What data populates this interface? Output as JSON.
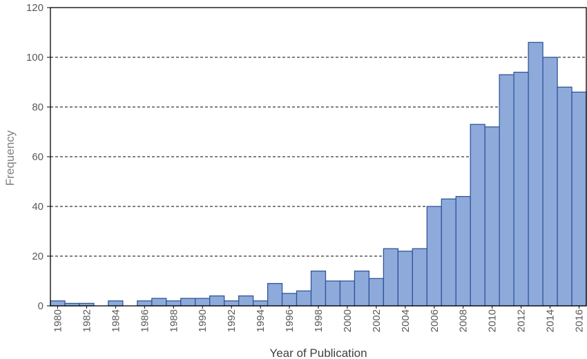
{
  "chart_data": {
    "type": "bar",
    "title": "",
    "xlabel": "Year of Publication",
    "ylabel": "Frequency",
    "ylim": [
      0,
      120
    ],
    "yticks": [
      0,
      20,
      40,
      60,
      80,
      100,
      120
    ],
    "grid": "horizontal dashed",
    "categories": [
      "1980",
      "1981",
      "1982",
      "1983",
      "1984",
      "1985",
      "1986",
      "1987",
      "1988",
      "1989",
      "1990",
      "1991",
      "1992",
      "1993",
      "1994",
      "1995",
      "1996",
      "1997",
      "1998",
      "1999",
      "2000",
      "2001",
      "2002",
      "2003",
      "2004",
      "2005",
      "2006",
      "2007",
      "2008",
      "2009",
      "2010",
      "2011",
      "2012",
      "2013",
      "2014",
      "2015",
      "2016"
    ],
    "xtick_labels": [
      "1980",
      "1982",
      "1984",
      "1986",
      "1988",
      "1990",
      "1992",
      "1994",
      "1996",
      "1998",
      "2000",
      "2002",
      "2004",
      "2006",
      "2008",
      "2010",
      "2012",
      "2014",
      "2016"
    ],
    "values": [
      2,
      1,
      1,
      0,
      2,
      0,
      2,
      3,
      2,
      3,
      3,
      4,
      2,
      4,
      2,
      9,
      5,
      6,
      14,
      10,
      10,
      14,
      11,
      23,
      22,
      23,
      40,
      43,
      44,
      73,
      72,
      93,
      94,
      106,
      100,
      88,
      86
    ],
    "colors": {
      "bar_fill": "#8eaadb",
      "bar_stroke": "#2f5597",
      "grid": "#000000",
      "axis": "#000000"
    }
  }
}
